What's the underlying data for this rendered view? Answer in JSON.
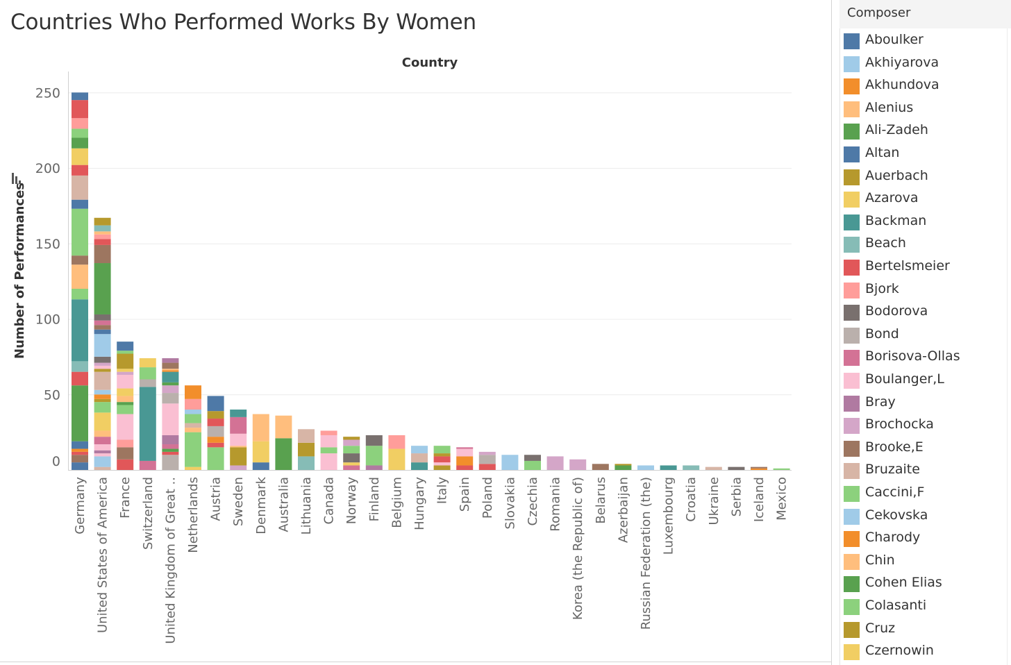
{
  "title": "Countries Who Performed Works By Women",
  "chart_data": {
    "type": "bar",
    "stacked": true,
    "title": "Countries Who Performed Works By Women",
    "column_header": "Country",
    "xlabel": "",
    "ylabel": "Number of Performances",
    "ylim": [
      0,
      255
    ],
    "yticks": [
      0,
      50,
      100,
      150,
      200,
      250
    ],
    "grid": true,
    "legend_position": "right",
    "legend_title": "Composer",
    "categories": [
      "Germany",
      "United States of America",
      "France",
      "Switzerland",
      "United Kingdom of Great ..",
      "Netherlands",
      "Austria",
      "Sweden",
      "Denmark",
      "Australia",
      "Lithuania",
      "Canada",
      "Norway",
      "Finland",
      "Belgium",
      "Hungary",
      "Italy",
      "Spain",
      "Poland",
      "Slovakia",
      "Czechia",
      "Romania",
      "Korea (the Republic of)",
      "Belarus",
      "Azerbaijan",
      "Russian Federation (the)",
      "Luxembourg",
      "Croatia",
      "Ukraine",
      "Serbia",
      "Iceland",
      "Mexico"
    ],
    "stacks": [
      [
        [
          "#4e79a7",
          5
        ],
        [
          "#9c755f",
          5
        ],
        [
          "#e15759",
          2
        ],
        [
          "#f28e2b",
          2
        ],
        [
          "#4e79a7",
          5
        ],
        [
          "#59a14f",
          37
        ],
        [
          "#e15759",
          9
        ],
        [
          "#86bcb6",
          7
        ],
        [
          "#499894",
          41
        ],
        [
          "#8cd17d",
          7
        ],
        [
          "#ffbe7d",
          16
        ],
        [
          "#9d7660",
          6
        ],
        [
          "#8cd17d",
          31
        ],
        [
          "#4e79a7",
          6
        ],
        [
          "#d7b5a6",
          16
        ],
        [
          "#e15759",
          7
        ],
        [
          "#f1ce63",
          11
        ],
        [
          "#59a14f",
          7
        ],
        [
          "#8cd17d",
          6
        ],
        [
          "#ff9d9a",
          7
        ],
        [
          "#e15759",
          12
        ],
        [
          "#4e79a7",
          5
        ]
      ],
      [
        [
          "#d7b5a6",
          2
        ],
        [
          "#a0cbe8",
          7
        ],
        [
          "#fabfd2",
          2
        ],
        [
          "#b07aa1",
          2
        ],
        [
          "#fabfd2",
          4
        ],
        [
          "#d37295",
          5
        ],
        [
          "#ffbe7d",
          4
        ],
        [
          "#f1ce63",
          12
        ],
        [
          "#8cd17d",
          7
        ],
        [
          "#b6992d",
          2
        ],
        [
          "#f28e2b",
          3
        ],
        [
          "#a0cbe8",
          3
        ],
        [
          "#d7b5a6",
          12
        ],
        [
          "#b6992d",
          2
        ],
        [
          "#fabfd2",
          2
        ],
        [
          "#d4a6c8",
          2
        ],
        [
          "#79706e",
          4
        ],
        [
          "#a0cbe8",
          15
        ],
        [
          "#4e79a7",
          3
        ],
        [
          "#9d7660",
          3
        ],
        [
          "#d37295",
          3
        ],
        [
          "#79706e",
          4
        ],
        [
          "#59a14f",
          34
        ],
        [
          "#9d7660",
          12
        ],
        [
          "#e15759",
          4
        ],
        [
          "#ff9d9a",
          3
        ],
        [
          "#ffbe7d",
          2
        ],
        [
          "#86bcb6",
          4
        ],
        [
          "#b6992d",
          5
        ]
      ],
      [
        [
          "#e15759",
          7
        ],
        [
          "#9d7660",
          8
        ],
        [
          "#ff9d9a",
          5
        ],
        [
          "#fabfd2",
          17
        ],
        [
          "#8cd17d",
          6
        ],
        [
          "#59a14f",
          2
        ],
        [
          "#ffbe7d",
          4
        ],
        [
          "#f1ce63",
          5
        ],
        [
          "#fabfd2",
          9
        ],
        [
          "#d4a6c8",
          2
        ],
        [
          "#f1ce63",
          2
        ],
        [
          "#b6992d",
          10
        ],
        [
          "#8cd17d",
          2
        ],
        [
          "#4e79a7",
          6
        ]
      ],
      [
        [
          "#d37295",
          6
        ],
        [
          "#499894",
          49
        ],
        [
          "#bab0ac",
          5
        ],
        [
          "#8cd17d",
          8
        ],
        [
          "#f1ce63",
          6
        ]
      ],
      [
        [
          "#bab0ac",
          10
        ],
        [
          "#e15759",
          2
        ],
        [
          "#59a14f",
          2
        ],
        [
          "#d37295",
          3
        ],
        [
          "#b07aa1",
          6
        ],
        [
          "#fabfd2",
          21
        ],
        [
          "#bab0ac",
          7
        ],
        [
          "#d4a6c8",
          5
        ],
        [
          "#59a14f",
          2
        ],
        [
          "#499894",
          7
        ],
        [
          "#f28e2b",
          1
        ],
        [
          "#ffbe7d",
          1
        ],
        [
          "#9d7660",
          4
        ],
        [
          "#b07aa1",
          3
        ]
      ],
      [
        [
          "#f1ce63",
          2
        ],
        [
          "#8cd17d",
          23
        ],
        [
          "#ffbe7d",
          3
        ],
        [
          "#d7b5a6",
          3
        ],
        [
          "#8cd17d",
          6
        ],
        [
          "#a0cbe8",
          3
        ],
        [
          "#ff9d9a",
          7
        ],
        [
          "#f28e2b",
          9
        ]
      ],
      [
        [
          "#8cd17d",
          15
        ],
        [
          "#e15759",
          3
        ],
        [
          "#f28e2b",
          4
        ],
        [
          "#bab0ac",
          7
        ],
        [
          "#e15759",
          5
        ],
        [
          "#b6992d",
          5
        ],
        [
          "#4e79a7",
          10
        ]
      ],
      [
        [
          "#d4a6c8",
          3
        ],
        [
          "#b6992d",
          12
        ],
        [
          "#ffbe7d",
          1
        ],
        [
          "#fabfd2",
          8
        ],
        [
          "#d37295",
          11
        ],
        [
          "#499894",
          5
        ]
      ],
      [
        [
          "#4e79a7",
          5
        ],
        [
          "#f1ce63",
          14
        ],
        [
          "#ffbe7d",
          18
        ]
      ],
      [
        [
          "#59a14f",
          21
        ],
        [
          "#ffbe7d",
          15
        ]
      ],
      [
        [
          "#86bcb6",
          9
        ],
        [
          "#b6992d",
          9
        ],
        [
          "#d7b5a6",
          9
        ]
      ],
      [
        [
          "#fabfd2",
          11
        ],
        [
          "#8cd17d",
          4
        ],
        [
          "#fabfd2",
          8
        ],
        [
          "#ff9d9a",
          3
        ]
      ],
      [
        [
          "#d37295",
          3
        ],
        [
          "#f1ce63",
          2
        ],
        [
          "#79706e",
          6
        ],
        [
          "#8cd17d",
          5
        ],
        [
          "#d4a6c8",
          4
        ],
        [
          "#b6992d",
          2
        ]
      ],
      [
        [
          "#b07aa1",
          3
        ],
        [
          "#8cd17d",
          13
        ],
        [
          "#79706e",
          7
        ]
      ],
      [
        [
          "#f1ce63",
          14
        ],
        [
          "#ff9d9a",
          9
        ]
      ],
      [
        [
          "#499894",
          5
        ],
        [
          "#d7b5a6",
          6
        ],
        [
          "#a0cbe8",
          5
        ]
      ],
      [
        [
          "#b6992d",
          3
        ],
        [
          "#fabfd2",
          2
        ],
        [
          "#e15759",
          4
        ],
        [
          "#b6992d",
          2
        ],
        [
          "#8cd17d",
          5
        ]
      ],
      [
        [
          "#e15759",
          3
        ],
        [
          "#f28e2b",
          6
        ],
        [
          "#fabfd2",
          5
        ],
        [
          "#d37295",
          1
        ]
      ],
      [
        [
          "#e15759",
          4
        ],
        [
          "#bab0ac",
          6
        ],
        [
          "#d4a6c8",
          2
        ]
      ],
      [
        [
          "#a0cbe8",
          10
        ]
      ],
      [
        [
          "#8cd17d",
          6
        ],
        [
          "#79706e",
          4
        ]
      ],
      [
        [
          "#d4a6c8",
          9
        ]
      ],
      [
        [
          "#d4a6c8",
          7
        ]
      ],
      [
        [
          "#9d7660",
          4
        ]
      ],
      [
        [
          "#59a14f",
          3
        ],
        [
          "#b6992d",
          1
        ]
      ],
      [
        [
          "#a0cbe8",
          3
        ]
      ],
      [
        [
          "#499894",
          3
        ]
      ],
      [
        [
          "#86bcb6",
          3
        ]
      ],
      [
        [
          "#d7b5a6",
          2
        ]
      ],
      [
        [
          "#79706e",
          2
        ]
      ],
      [
        [
          "#f28e2b",
          1
        ],
        [
          "#9d7660",
          1
        ]
      ],
      [
        [
          "#8cd17d",
          1
        ]
      ]
    ],
    "legend": [
      {
        "name": "Aboulker",
        "color": "#4e79a7"
      },
      {
        "name": "Akhiyarova",
        "color": "#a0cbe8"
      },
      {
        "name": "Akhundova",
        "color": "#f28e2b"
      },
      {
        "name": "Alenius",
        "color": "#ffbe7d"
      },
      {
        "name": "Ali-Zadeh",
        "color": "#59a14f"
      },
      {
        "name": "Altan",
        "color": "#4e79a7"
      },
      {
        "name": "Auerbach",
        "color": "#b6992d"
      },
      {
        "name": "Azarova",
        "color": "#f1ce63"
      },
      {
        "name": "Backman",
        "color": "#499894"
      },
      {
        "name": "Beach",
        "color": "#86bcb6"
      },
      {
        "name": "Bertelsmeier",
        "color": "#e15759"
      },
      {
        "name": "Bjork",
        "color": "#ff9d9a"
      },
      {
        "name": "Bodorova",
        "color": "#79706e"
      },
      {
        "name": "Bond",
        "color": "#bab0ac"
      },
      {
        "name": "Borisova-Ollas",
        "color": "#d37295"
      },
      {
        "name": "Boulanger,L",
        "color": "#fabfd2"
      },
      {
        "name": "Bray",
        "color": "#b07aa1"
      },
      {
        "name": "Brochocka",
        "color": "#d4a6c8"
      },
      {
        "name": "Brooke,E",
        "color": "#9d7660"
      },
      {
        "name": "Bruzaite",
        "color": "#d7b5a6"
      },
      {
        "name": "Caccini,F",
        "color": "#8cd17d"
      },
      {
        "name": "Cekovska",
        "color": "#a0cbe8"
      },
      {
        "name": "Charody",
        "color": "#f28e2b"
      },
      {
        "name": "Chin",
        "color": "#ffbe7d"
      },
      {
        "name": "Cohen Elias",
        "color": "#59a14f"
      },
      {
        "name": "Colasanti",
        "color": "#8cd17d"
      },
      {
        "name": "Cruz",
        "color": "#b6992d"
      },
      {
        "name": "Czernowin",
        "color": "#f1ce63"
      }
    ]
  }
}
